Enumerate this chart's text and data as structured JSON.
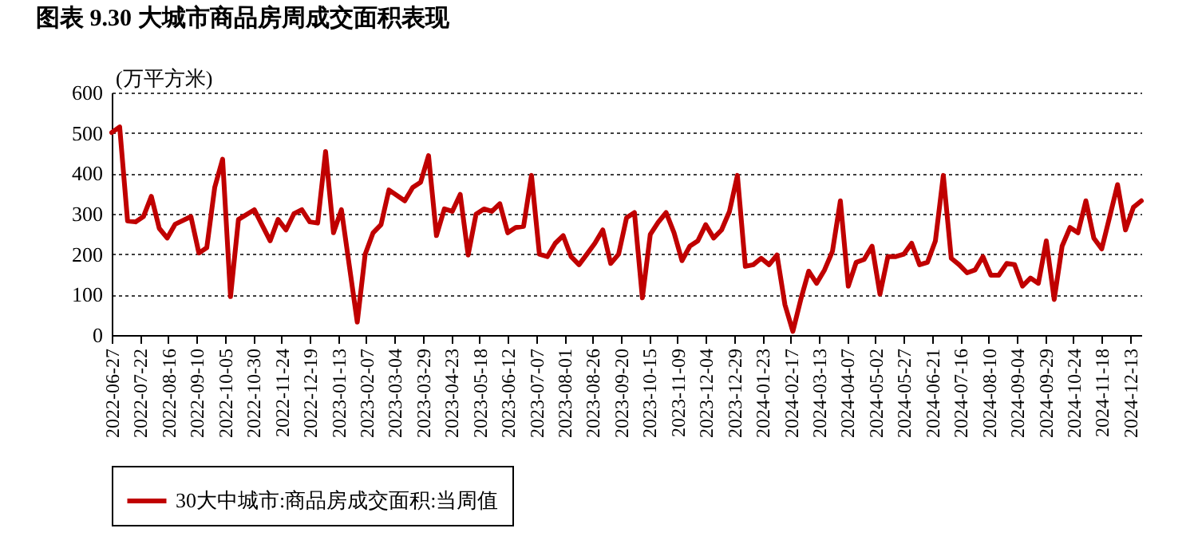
{
  "chart_data": {
    "type": "line",
    "title": "图表 9.30 大城市商品房周成交面积表现",
    "ylabel": "(万平方米)",
    "x": [
      "2022-06-27",
      "2022-07-04",
      "2022-07-11",
      "2022-07-18",
      "2022-07-25",
      "2022-08-01",
      "2022-08-08",
      "2022-08-15",
      "2022-08-22",
      "2022-09-05",
      "2022-09-12",
      "2022-09-19",
      "2022-09-26",
      "2022-10-03",
      "2022-10-10",
      "2022-10-17",
      "2022-10-31",
      "2022-11-14",
      "2022-11-21",
      "2022-11-28",
      "2022-12-05",
      "2022-12-12",
      "2022-12-19",
      "2022-12-26",
      "2023-01-02",
      "2023-01-09",
      "2023-01-16",
      "2023-01-30",
      "2023-02-06",
      "2023-02-13",
      "2023-02-20",
      "2023-02-27",
      "2023-03-13",
      "2023-03-20",
      "2023-03-27",
      "2023-04-03",
      "2023-04-10",
      "2023-04-17",
      "2023-04-24",
      "2023-05-01",
      "2023-05-08",
      "2023-05-15",
      "2023-05-22",
      "2023-05-29",
      "2023-06-05",
      "2023-06-12",
      "2023-06-19",
      "2023-06-26",
      "2023-07-03",
      "2023-07-10",
      "2023-07-17",
      "2023-07-24",
      "2023-07-31",
      "2023-08-07",
      "2023-08-14",
      "2023-08-21",
      "2023-08-28",
      "2023-09-04",
      "2023-09-11",
      "2023-09-18",
      "2023-09-25",
      "2023-10-02",
      "2023-10-09",
      "2023-10-16",
      "2023-10-23",
      "2023-10-30",
      "2023-11-06",
      "2023-11-13",
      "2023-11-20",
      "2023-11-27",
      "2023-12-04",
      "2023-12-11",
      "2023-12-18",
      "2023-12-25",
      "2024-01-01",
      "2024-01-08",
      "2024-01-15",
      "2024-01-22",
      "2024-01-29",
      "2024-02-05",
      "2024-02-12",
      "2024-02-19",
      "2024-02-26",
      "2024-03-04",
      "2024-03-11",
      "2024-03-18",
      "2024-03-25",
      "2024-04-01",
      "2024-04-08",
      "2024-04-15",
      "2024-04-22",
      "2024-04-29",
      "2024-05-06",
      "2024-05-13",
      "2024-05-20",
      "2024-05-27",
      "2024-06-03",
      "2024-06-10",
      "2024-06-17",
      "2024-06-24",
      "2024-07-01",
      "2024-07-08",
      "2024-07-15",
      "2024-07-22",
      "2024-07-29",
      "2024-08-05",
      "2024-08-12",
      "2024-08-19",
      "2024-08-26",
      "2024-09-02",
      "2024-09-09",
      "2024-09-16",
      "2024-09-23",
      "2024-09-30",
      "2024-10-07",
      "2024-10-14",
      "2024-10-21",
      "2024-10-28",
      "2024-11-04",
      "2024-11-11",
      "2024-11-18",
      "2024-11-25",
      "2024-12-02",
      "2024-12-09",
      "2024-12-16",
      "2024-12-23"
    ],
    "series": [
      {
        "name": "30大中城市:商品房成交面积:当周值",
        "color": "#c00000",
        "values": [
          501,
          515,
          282,
          280,
          293,
          343,
          264,
          240,
          274,
          293,
          203,
          216,
          365,
          435,
          95,
          286,
          310,
          233,
          286,
          260,
          300,
          310,
          280,
          277,
          454,
          253,
          310,
          32,
          200,
          253,
          273,
          359,
          332,
          365,
          378,
          444,
          246,
          312,
          306,
          348,
          198,
          299,
          312,
          306,
          325,
          253,
          266,
          269,
          395,
          200,
          194,
          227,
          246,
          194,
          174,
          200,
          227,
          260,
          177,
          200,
          290,
          303,
          92,
          249,
          279,
          303,
          253,
          184,
          220,
          233,
          273,
          240,
          260,
          306,
          395,
          170,
          174,
          190,
          174,
          198,
          75,
          9,
          88,
          158,
          128,
          161,
          207,
          332,
          121,
          180,
          187,
          220,
          101,
          194,
          194,
          200,
          227,
          174,
          180,
          233,
          395,
          190,
          174,
          154,
          161,
          194,
          148,
          148,
          177,
          174,
          121,
          141,
          128,
          233,
          88,
          220,
          266,
          253,
          332,
          240,
          213,
          292,
          372,
          260,
          316,
          332
        ]
      }
    ],
    "xlim": [
      "2022-06-27",
      "2024-12-23"
    ],
    "xticks": [
      "2022-06-27",
      "2022-07-22",
      "2022-08-16",
      "2022-09-10",
      "2022-10-05",
      "2022-10-30",
      "2022-11-24",
      "2022-12-19",
      "2023-01-13",
      "2023-02-07",
      "2023-03-04",
      "2023-03-29",
      "2023-04-23",
      "2023-05-18",
      "2023-06-12",
      "2023-07-07",
      "2023-08-01",
      "2023-08-26",
      "2023-09-20",
      "2023-10-15",
      "2023-11-09",
      "2023-12-04",
      "2023-12-29",
      "2024-01-23",
      "2024-02-17",
      "2024-03-13",
      "2024-04-07",
      "2024-05-02",
      "2024-05-27",
      "2024-06-21",
      "2024-07-16",
      "2024-08-10",
      "2024-09-04",
      "2024-09-29",
      "2024-10-24",
      "2024-11-18",
      "2024-12-13"
    ],
    "ylim": [
      0,
      600
    ],
    "yticks": [
      0,
      100,
      200,
      300,
      400,
      500,
      600
    ],
    "grid": "y",
    "legend": "bottom",
    "line_style": "solid"
  }
}
